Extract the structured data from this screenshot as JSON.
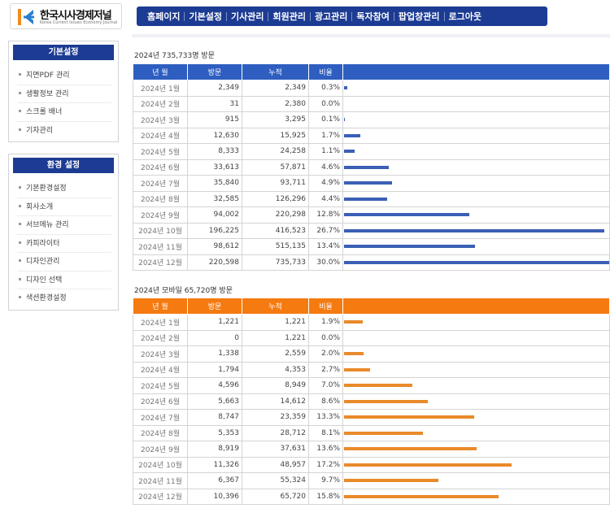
{
  "header": {
    "logo_name": "한국시사경제저널",
    "logo_sub": "Korea Current Issues Economy Journal",
    "nav": [
      "홈페이지",
      "기본설정",
      "기사관리",
      "회원관리",
      "광고관리",
      "독자참여",
      "팝업창관리",
      "로그아웃"
    ]
  },
  "sidebar": {
    "basic": {
      "title": "기본설정",
      "items": [
        "지면PDF 관리",
        "생활정보 관리",
        "스크롤 배너",
        "기자관리"
      ]
    },
    "env": {
      "title": "환경 설정",
      "items": [
        "기본환경설정",
        "회사소개",
        "서브메뉴 관리",
        "카피라이터",
        "디자인관리",
        "디자인 선택",
        "색션환경설정"
      ]
    }
  },
  "colors": {
    "nav": "#1c3b92",
    "pc_header": "#2e5ec0",
    "mobile_header": "#f57a10"
  },
  "pc": {
    "caption": "2024년 735,733명 방문",
    "headers": [
      "년 월",
      "방문",
      "누적",
      "비율"
    ],
    "rows": [
      {
        "month": "2024년 1월",
        "visits": "2,349",
        "cum": "2,349",
        "ratio": "0.3%",
        "pct": 0.3
      },
      {
        "month": "2024년 2월",
        "visits": "31",
        "cum": "2,380",
        "ratio": "0.0%",
        "pct": 0.0
      },
      {
        "month": "2024년 3월",
        "visits": "915",
        "cum": "3,295",
        "ratio": "0.1%",
        "pct": 0.1
      },
      {
        "month": "2024년 4월",
        "visits": "12,630",
        "cum": "15,925",
        "ratio": "1.7%",
        "pct": 1.7
      },
      {
        "month": "2024년 5월",
        "visits": "8,333",
        "cum": "24,258",
        "ratio": "1.1%",
        "pct": 1.1
      },
      {
        "month": "2024년 6월",
        "visits": "33,613",
        "cum": "57,871",
        "ratio": "4.6%",
        "pct": 4.6
      },
      {
        "month": "2024년 7월",
        "visits": "35,840",
        "cum": "93,711",
        "ratio": "4.9%",
        "pct": 4.9
      },
      {
        "month": "2024년 8월",
        "visits": "32,585",
        "cum": "126,296",
        "ratio": "4.4%",
        "pct": 4.4
      },
      {
        "month": "2024년 9월",
        "visits": "94,002",
        "cum": "220,298",
        "ratio": "12.8%",
        "pct": 12.8
      },
      {
        "month": "2024년 10월",
        "visits": "196,225",
        "cum": "416,523",
        "ratio": "26.7%",
        "pct": 26.7
      },
      {
        "month": "2024년 11월",
        "visits": "98,612",
        "cum": "515,135",
        "ratio": "13.4%",
        "pct": 13.4
      },
      {
        "month": "2024년 12월",
        "visits": "220,598",
        "cum": "735,733",
        "ratio": "30.0%",
        "pct": 30.0
      }
    ]
  },
  "mobile": {
    "caption": "2024년 모바일 65,720명 방문",
    "headers": [
      "년 월",
      "방문",
      "누적",
      "비율"
    ],
    "rows": [
      {
        "month": "2024년 1월",
        "visits": "1,221",
        "cum": "1,221",
        "ratio": "1.9%",
        "pct": 1.9
      },
      {
        "month": "2024년 2월",
        "visits": "0",
        "cum": "1,221",
        "ratio": "0.0%",
        "pct": 0.0
      },
      {
        "month": "2024년 3월",
        "visits": "1,338",
        "cum": "2,559",
        "ratio": "2.0%",
        "pct": 2.0
      },
      {
        "month": "2024년 4월",
        "visits": "1,794",
        "cum": "4,353",
        "ratio": "2.7%",
        "pct": 2.7
      },
      {
        "month": "2024년 5월",
        "visits": "4,596",
        "cum": "8,949",
        "ratio": "7.0%",
        "pct": 7.0
      },
      {
        "month": "2024년 6월",
        "visits": "5,663",
        "cum": "14,612",
        "ratio": "8.6%",
        "pct": 8.6
      },
      {
        "month": "2024년 7월",
        "visits": "8,747",
        "cum": "23,359",
        "ratio": "13.3%",
        "pct": 13.3
      },
      {
        "month": "2024년 8월",
        "visits": "5,353",
        "cum": "28,712",
        "ratio": "8.1%",
        "pct": 8.1
      },
      {
        "month": "2024년 9월",
        "visits": "8,919",
        "cum": "37,631",
        "ratio": "13.6%",
        "pct": 13.6
      },
      {
        "month": "2024년 10월",
        "visits": "11,326",
        "cum": "48,957",
        "ratio": "17.2%",
        "pct": 17.2
      },
      {
        "month": "2024년 11월",
        "visits": "6,367",
        "cum": "55,324",
        "ratio": "9.7%",
        "pct": 9.7
      },
      {
        "month": "2024년 12월",
        "visits": "10,396",
        "cum": "65,720",
        "ratio": "15.8%",
        "pct": 15.8
      }
    ]
  }
}
